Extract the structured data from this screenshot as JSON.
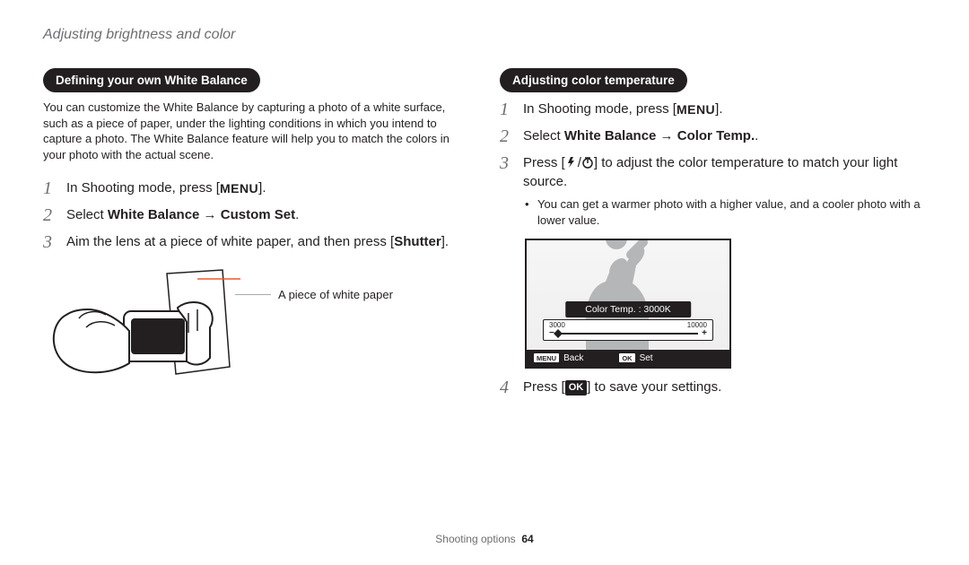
{
  "header": "Adjusting brightness and color",
  "left": {
    "pill": "Defining your own White Balance",
    "intro": "You can customize the White Balance by capturing a photo of a white surface, such as a piece of paper, under the lighting conditions in which you intend to capture a photo. The White Balance feature will help you to match the colors in your photo with the actual scene.",
    "steps": [
      {
        "n": "1",
        "pre": "In Shooting mode, press [",
        "badge": "MENU",
        "post": "]."
      },
      {
        "n": "2",
        "html": "Select <b>White Balance</b> → <b>Custom Set</b>."
      },
      {
        "n": "3",
        "html": "Aim the lens at a piece of white paper, and then press [<b>Shutter</b>]."
      }
    ],
    "caption": "A piece of white paper"
  },
  "right": {
    "pill": "Adjusting color temperature",
    "steps": [
      {
        "n": "1",
        "pre": "In Shooting mode, press [",
        "badge": "MENU",
        "post": "]."
      },
      {
        "n": "2",
        "html": "Select <b>White Balance</b> → <b>Color Temp.</b>."
      },
      {
        "n": "3",
        "html": "Press [<span class='flash-timer'></span>] to adjust the color temperature to match your light source.",
        "bullets": [
          "You can get a warmer photo with a higher value, and a cooler photo with a lower value."
        ]
      },
      {
        "n": "4",
        "pre": "Press [",
        "okbadge": "OK",
        "post": "] to save your settings."
      }
    ],
    "screen": {
      "label": "Color Temp. : 3000K",
      "tick_min": "3000",
      "tick_max": "10000",
      "minus": "−",
      "plus": "+",
      "knob_pos_pct": 0,
      "footer_left_badge": "MENU",
      "footer_left": "Back",
      "footer_right_badge": "OK",
      "footer_right": "Set",
      "border_color": "#231f20",
      "bg_gradient_top": "#f6f6f6",
      "bg_gradient_bottom": "#efefef",
      "silhouette_color": "#b4b6b8"
    }
  },
  "footer": {
    "section": "Shooting options",
    "page": "64"
  },
  "colors": {
    "text": "#231f20",
    "muted": "#6d6e71",
    "leader": "#a7a9ac",
    "camera_line": "#f05a28"
  }
}
